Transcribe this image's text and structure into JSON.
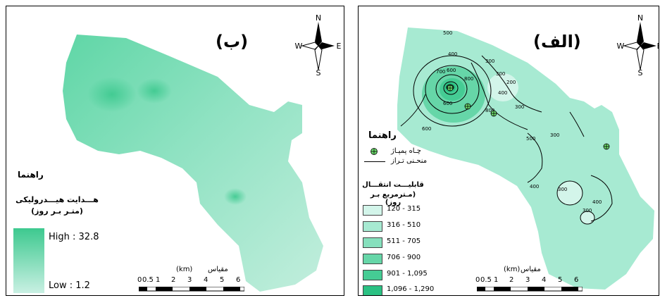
{
  "panel_b": {
    "title": "(ب)",
    "compass": {
      "n": "N",
      "s": "S",
      "e": "E",
      "w": "W"
    },
    "legend": {
      "heading": "راهنما",
      "title_line1": "هـــدایت هیـــدرولیکی",
      "title_line2": "(متـر بـر روز)",
      "high_label": "High : 32.8",
      "low_label": "Low : 1.2"
    },
    "scale": {
      "unit_label": "مقیاس",
      "km_label": "(km)",
      "ticks": [
        "0",
        "0.5",
        "1",
        "2",
        "3",
        "4",
        "5",
        "6"
      ]
    },
    "colors": {
      "high": "#3dc98f",
      "low": "#c9f0e3"
    }
  },
  "panel_a": {
    "title": "(الف)",
    "compass": {
      "n": "N",
      "s": "S",
      "w": "W",
      "e": "E"
    },
    "legend": {
      "heading": "راهنما",
      "well_label": "چـاه پمپـاژ",
      "contour_label": "منحـنی تـراز",
      "class_title_line1": "قابلیـــت انتقـــال",
      "class_title_line2": "(مـترمربع بـر روز)",
      "classes": [
        {
          "label": "120 - 315",
          "color": "#d3f5ea"
        },
        {
          "label": "316 - 510",
          "color": "#a7ead2"
        },
        {
          "label": "511 - 705",
          "color": "#86e0bd"
        },
        {
          "label": "706 - 900",
          "color": "#66d6a8"
        },
        {
          "label": "901 - 1,095",
          "color": "#45cc94"
        },
        {
          "label": "1,096 - 1,290",
          "color": "#2bc183"
        }
      ]
    },
    "contour_labels": [
      "500",
      "300",
      "400",
      "700",
      "600",
      "800",
      "200",
      "300",
      "300",
      "400",
      "800",
      "600",
      "500",
      "300",
      "400",
      "300",
      "400",
      "300",
      "600"
    ],
    "scale": {
      "unit_label": "مقیاس",
      "km_label": "(km)",
      "ticks": [
        "0",
        "0.5",
        "1",
        "2",
        "3",
        "4",
        "5",
        "6"
      ]
    }
  }
}
